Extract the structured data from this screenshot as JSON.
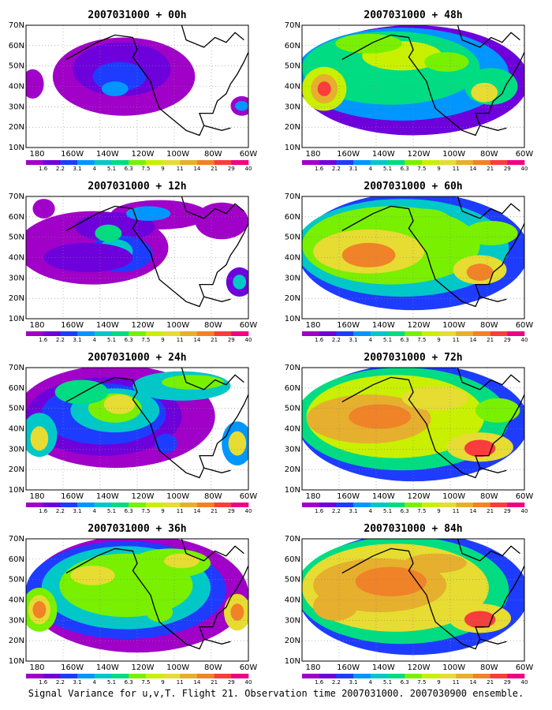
{
  "caption": "Signal Variance for u,v,T. Flight 21. Observation time 2007031000. 2007030900 ensemble.",
  "lat_labels": [
    "70N",
    "60N",
    "50N",
    "40N",
    "30N",
    "20N",
    "10N"
  ],
  "lon_labels": [
    "180",
    "160W",
    "140W",
    "120W",
    "100W",
    "80W",
    "60W"
  ],
  "colorbar": {
    "colors": [
      "#a000c8",
      "#6e00dc",
      "#1e3cff",
      "#0096ff",
      "#00c8c8",
      "#00dc82",
      "#78f000",
      "#c8f000",
      "#e6dc32",
      "#e6af2d",
      "#f08228",
      "#fa3c3c",
      "#f00082"
    ],
    "labels": [
      "1.6",
      "2.2",
      "3.1",
      "4",
      "5.1",
      "6.3",
      "7.5",
      "9",
      "11",
      "14",
      "21",
      "29",
      "40"
    ]
  },
  "panels": [
    {
      "title": "2007031000 + 00h",
      "lead": "00h"
    },
    {
      "title": "2007031000 + 48h",
      "lead": "48h"
    },
    {
      "title": "2007031000 + 12h",
      "lead": "12h"
    },
    {
      "title": "2007031000 + 60h",
      "lead": "60h"
    },
    {
      "title": "2007031000 + 24h",
      "lead": "24h"
    },
    {
      "title": "2007031000 + 72h",
      "lead": "72h"
    },
    {
      "title": "2007031000 + 36h",
      "lead": "36h"
    },
    {
      "title": "2007031000 + 84h",
      "lead": "84h"
    }
  ]
}
